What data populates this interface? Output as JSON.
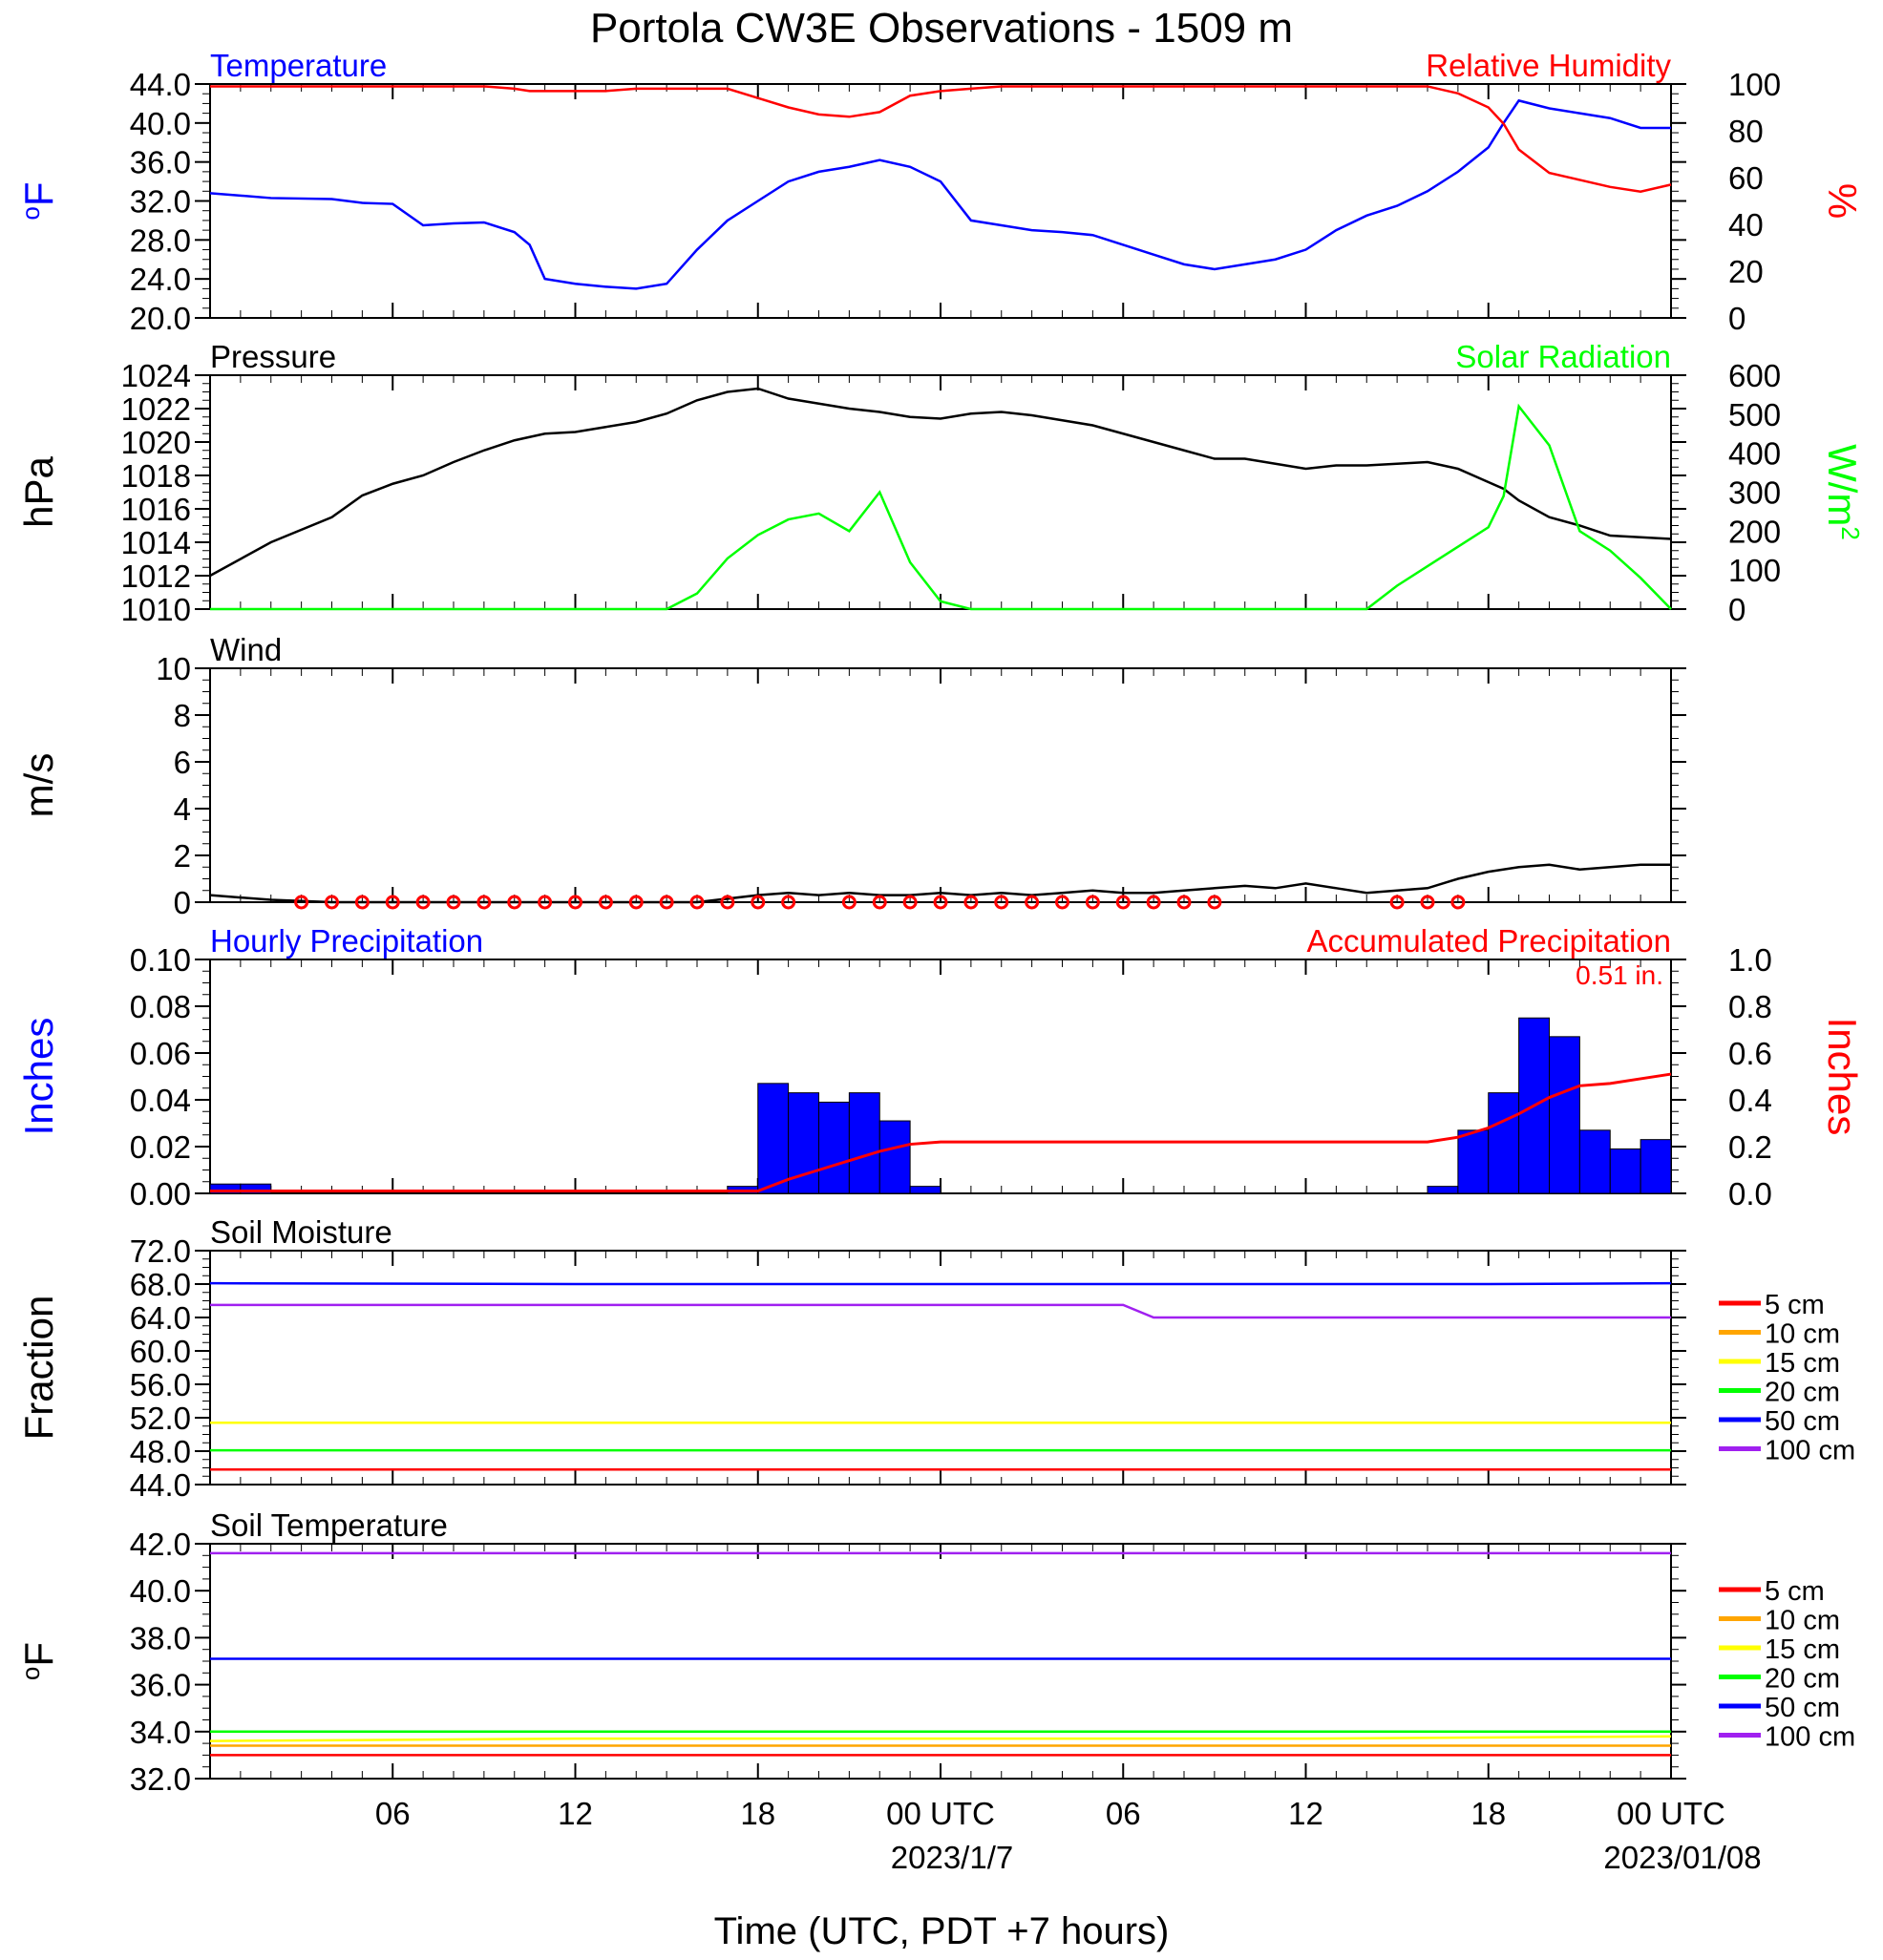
{
  "title": "Portola CW3E Observations - 1509 m",
  "xaxis": {
    "title": "Time (UTC, PDT +7 hours)",
    "tick_labels": [
      "06",
      "12",
      "18",
      "00 UTC",
      "06",
      "12",
      "18",
      "00 UTC"
    ],
    "date_labels": [
      "2023/1/7",
      "2023/01/08"
    ]
  },
  "colors": {
    "blue": "#0000ff",
    "red": "#ff0000",
    "green": "#00ff00",
    "black": "#000000",
    "orange": "#ffa500",
    "yellow": "#ffff00",
    "purple": "#a020f0"
  },
  "chart_data": [
    {
      "type": "line",
      "panel": "temperature-humidity",
      "left_title": "Temperature",
      "right_title": "Relative Humidity",
      "ylabel": "oF",
      "y2label": "%",
      "ylim": [
        20,
        44
      ],
      "y2lim": [
        0,
        100
      ],
      "yticks": [
        "44.0",
        "40.0",
        "36.0",
        "32.0",
        "28.0",
        "24.0",
        "20.0"
      ],
      "y2ticks": [
        "100",
        "80",
        "60",
        "40",
        "20",
        "0"
      ],
      "x_hours": [
        0,
        2,
        4,
        5,
        6,
        7,
        8,
        9,
        10,
        10.5,
        11,
        12,
        13,
        14,
        15,
        16,
        17,
        18,
        19,
        20,
        21,
        22,
        23,
        24,
        25,
        26,
        27,
        28,
        29,
        30,
        31,
        32,
        33,
        34,
        35,
        36,
        37,
        38,
        39,
        40,
        41,
        42,
        42.5,
        43,
        44,
        45,
        46,
        47,
        48
      ],
      "series": [
        {
          "name": "Temperature",
          "axis": "left",
          "color": "#0000ff",
          "values": [
            32.8,
            32.3,
            32.2,
            31.8,
            31.7,
            29.5,
            29.7,
            29.8,
            28.8,
            27.5,
            24.0,
            23.5,
            23.2,
            23.0,
            23.5,
            27.0,
            30.0,
            32.0,
            34.0,
            35.0,
            35.5,
            36.2,
            35.5,
            34.0,
            30.0,
            29.5,
            29.0,
            28.8,
            28.5,
            27.5,
            26.5,
            25.5,
            25.0,
            25.5,
            26.0,
            27.0,
            29.0,
            30.5,
            31.5,
            33.0,
            35.0,
            37.5,
            40.0,
            42.3,
            41.5,
            41.0,
            40.5,
            39.5,
            39.5
          ]
        },
        {
          "name": "Relative Humidity",
          "axis": "right",
          "color": "#ff0000",
          "values": [
            99,
            99,
            99,
            99,
            99,
            99,
            99,
            99,
            98,
            97,
            97,
            97,
            97,
            98,
            98,
            98,
            98,
            94,
            90,
            87,
            86,
            88,
            95,
            97,
            98,
            99,
            99,
            99,
            99,
            99,
            99,
            99,
            99,
            99,
            99,
            99,
            99,
            99,
            99,
            99,
            96,
            90,
            83,
            72,
            62,
            59,
            56,
            54,
            57
          ]
        }
      ]
    },
    {
      "type": "line",
      "panel": "pressure-solar",
      "left_title": "Pressure",
      "right_title": "Solar Radiation",
      "ylabel": "hPa",
      "y2label": "W/m2",
      "ylim": [
        1010,
        1024
      ],
      "y2lim": [
        0,
        600
      ],
      "yticks": [
        "1024",
        "1022",
        "1020",
        "1018",
        "1016",
        "1014",
        "1012",
        "1010"
      ],
      "y2ticks": [
        "600",
        "500",
        "400",
        "300",
        "200",
        "100",
        "0"
      ],
      "x_hours": [
        0,
        2,
        4,
        5,
        6,
        7,
        8,
        9,
        10,
        10.5,
        11,
        12,
        13,
        14,
        15,
        16,
        17,
        18,
        19,
        20,
        21,
        22,
        23,
        24,
        25,
        26,
        27,
        28,
        29,
        30,
        31,
        32,
        33,
        34,
        35,
        36,
        37,
        38,
        39,
        40,
        41,
        42,
        42.5,
        43,
        44,
        45,
        46,
        47,
        48
      ],
      "series": [
        {
          "name": "Pressure",
          "axis": "left",
          "color": "#000000",
          "values": [
            1012.0,
            1014.0,
            1015.5,
            1016.8,
            1017.5,
            1018.0,
            1018.8,
            1019.5,
            1020.1,
            1020.3,
            1020.5,
            1020.6,
            1020.9,
            1021.2,
            1021.7,
            1022.5,
            1023.0,
            1023.2,
            1022.6,
            1022.3,
            1022.0,
            1021.8,
            1021.5,
            1021.4,
            1021.7,
            1021.8,
            1021.6,
            1021.3,
            1021.0,
            1020.5,
            1020.0,
            1019.5,
            1019.0,
            1019.0,
            1018.7,
            1018.4,
            1018.6,
            1018.6,
            1018.7,
            1018.8,
            1018.4,
            1017.6,
            1017.2,
            1016.5,
            1015.5,
            1015.0,
            1014.4,
            1014.3,
            1014.2
          ]
        },
        {
          "name": "Solar Radiation",
          "axis": "right",
          "color": "#00ff00",
          "values": [
            0,
            0,
            0,
            0,
            0,
            0,
            0,
            0,
            0,
            0,
            0,
            0,
            0,
            0,
            0,
            40,
            130,
            190,
            230,
            245,
            200,
            300,
            120,
            20,
            0,
            0,
            0,
            0,
            0,
            0,
            0,
            0,
            0,
            0,
            0,
            0,
            0,
            0,
            60,
            110,
            160,
            210,
            290,
            520,
            420,
            200,
            150,
            80,
            0
          ]
        }
      ]
    },
    {
      "type": "line",
      "panel": "wind",
      "left_title": "Wind",
      "ylabel": "m/s",
      "ylim": [
        0,
        10
      ],
      "yticks": [
        "10",
        "8",
        "6",
        "4",
        "2",
        "0"
      ],
      "x_hours": [
        0,
        2,
        4,
        6,
        8,
        10,
        12,
        14,
        16,
        18,
        19,
        20,
        21,
        22,
        23,
        24,
        25,
        26,
        27,
        28,
        29,
        30,
        31,
        32,
        33,
        34,
        35,
        36,
        37,
        38,
        39,
        40,
        41,
        42,
        43,
        44,
        45,
        46,
        47,
        48
      ],
      "series": [
        {
          "name": "Wind speed",
          "color": "#000000",
          "values": [
            0.3,
            0.1,
            0.0,
            0.0,
            0.0,
            0.0,
            0.0,
            0.0,
            0.0,
            0.3,
            0.4,
            0.3,
            0.4,
            0.3,
            0.3,
            0.4,
            0.3,
            0.4,
            0.3,
            0.4,
            0.5,
            0.4,
            0.4,
            0.5,
            0.6,
            0.7,
            0.6,
            0.8,
            0.6,
            0.4,
            0.5,
            0.6,
            1.0,
            1.3,
            1.5,
            1.6,
            1.4,
            1.5,
            1.6,
            1.6
          ]
        },
        {
          "name": "Wind barbs",
          "color": "#ff0000",
          "calm_hours": [
            3,
            4,
            5,
            6,
            7,
            8,
            9,
            10,
            11,
            12,
            13,
            14,
            15,
            16,
            17,
            18,
            19,
            21,
            22,
            23,
            24,
            25,
            26,
            27,
            28,
            29,
            30,
            31,
            32,
            33,
            39,
            40,
            41
          ]
        }
      ]
    },
    {
      "type": "bar",
      "panel": "precipitation",
      "left_title": "Hourly Precipitation",
      "right_title": "Accumulated Precipitation",
      "total_label": "0.51 in.",
      "ylabel": "Inches",
      "y2label": "Inches",
      "ylim": [
        0,
        0.1
      ],
      "y2lim": [
        0,
        1.0
      ],
      "yticks": [
        "0.10",
        "0.08",
        "0.06",
        "0.04",
        "0.02",
        "0.00"
      ],
      "y2ticks": [
        "1.0",
        "0.8",
        "0.6",
        "0.4",
        "0.2",
        "0.0"
      ],
      "bar_start_hours": [
        0,
        1,
        17,
        18,
        19,
        20,
        21,
        22,
        23,
        40,
        41,
        42,
        43,
        44,
        45,
        46,
        47
      ],
      "hourly_values": [
        0.004,
        0.004,
        0.003,
        0.047,
        0.043,
        0.039,
        0.043,
        0.031,
        0.003,
        0.003,
        0.027,
        0.043,
        0.075,
        0.067,
        0.027,
        0.019,
        0.023
      ],
      "accum_hours": [
        0,
        17,
        18,
        19,
        20,
        21,
        22,
        23,
        24,
        40,
        41,
        42,
        43,
        44,
        45,
        46,
        47,
        48
      ],
      "accum_values": [
        0.01,
        0.01,
        0.01,
        0.06,
        0.1,
        0.14,
        0.18,
        0.21,
        0.22,
        0.22,
        0.24,
        0.28,
        0.34,
        0.41,
        0.46,
        0.47,
        0.49,
        0.51
      ]
    },
    {
      "type": "line",
      "panel": "soil-moisture",
      "left_title": "Soil Moisture",
      "ylabel": "Fraction",
      "ylim": [
        44,
        72
      ],
      "yticks": [
        "72.0",
        "68.0",
        "64.0",
        "60.0",
        "56.0",
        "52.0",
        "48.0",
        "44.0"
      ],
      "x_hours": [
        0,
        12,
        24,
        30,
        31,
        36,
        41,
        42,
        48
      ],
      "series": [
        {
          "name": "5 cm",
          "color": "#ff0000",
          "values": [
            45.8,
            45.8,
            45.8,
            45.8,
            45.8,
            45.8,
            45.8,
            45.8,
            45.8
          ]
        },
        {
          "name": "10 cm",
          "color": "#ffa500",
          "values": [
            null,
            null,
            null,
            null,
            null,
            null,
            null,
            null,
            null
          ]
        },
        {
          "name": "15 cm",
          "color": "#ffff00",
          "values": [
            51.4,
            51.4,
            51.4,
            51.4,
            51.4,
            51.4,
            51.4,
            51.4,
            51.4
          ]
        },
        {
          "name": "20 cm",
          "color": "#00ff00",
          "values": [
            48.1,
            48.1,
            48.1,
            48.1,
            48.1,
            48.1,
            48.1,
            48.1,
            48.1
          ]
        },
        {
          "name": "50 cm",
          "color": "#0000ff",
          "values": [
            68.1,
            68.0,
            68.0,
            68.0,
            68.0,
            68.0,
            68.0,
            68.0,
            68.1
          ]
        },
        {
          "name": "100 cm",
          "color": "#a020f0",
          "values": [
            65.5,
            65.5,
            65.5,
            65.5,
            64.0,
            64.0,
            64.0,
            64.0,
            64.0
          ]
        }
      ]
    },
    {
      "type": "line",
      "panel": "soil-temperature",
      "left_title": "Soil Temperature",
      "ylabel": "oF",
      "ylim": [
        32,
        42
      ],
      "yticks": [
        "42.0",
        "40.0",
        "38.0",
        "36.0",
        "34.0",
        "32.0"
      ],
      "x_hours": [
        0,
        12,
        24,
        36,
        48
      ],
      "series": [
        {
          "name": "5 cm",
          "color": "#ff0000",
          "values": [
            33.0,
            33.0,
            33.0,
            33.0,
            33.0
          ]
        },
        {
          "name": "10 cm",
          "color": "#ffa500",
          "values": [
            33.4,
            33.4,
            33.4,
            33.4,
            33.4
          ]
        },
        {
          "name": "15 cm",
          "color": "#ffff00",
          "values": [
            33.6,
            33.7,
            33.7,
            33.7,
            33.8
          ]
        },
        {
          "name": "20 cm",
          "color": "#00ff00",
          "values": [
            34.0,
            34.0,
            34.0,
            34.0,
            34.0
          ]
        },
        {
          "name": "50 cm",
          "color": "#0000ff",
          "values": [
            37.1,
            37.1,
            37.1,
            37.1,
            37.1
          ]
        },
        {
          "name": "100 cm",
          "color": "#a020f0",
          "values": [
            41.6,
            41.6,
            41.6,
            41.6,
            41.6
          ]
        }
      ]
    }
  ]
}
